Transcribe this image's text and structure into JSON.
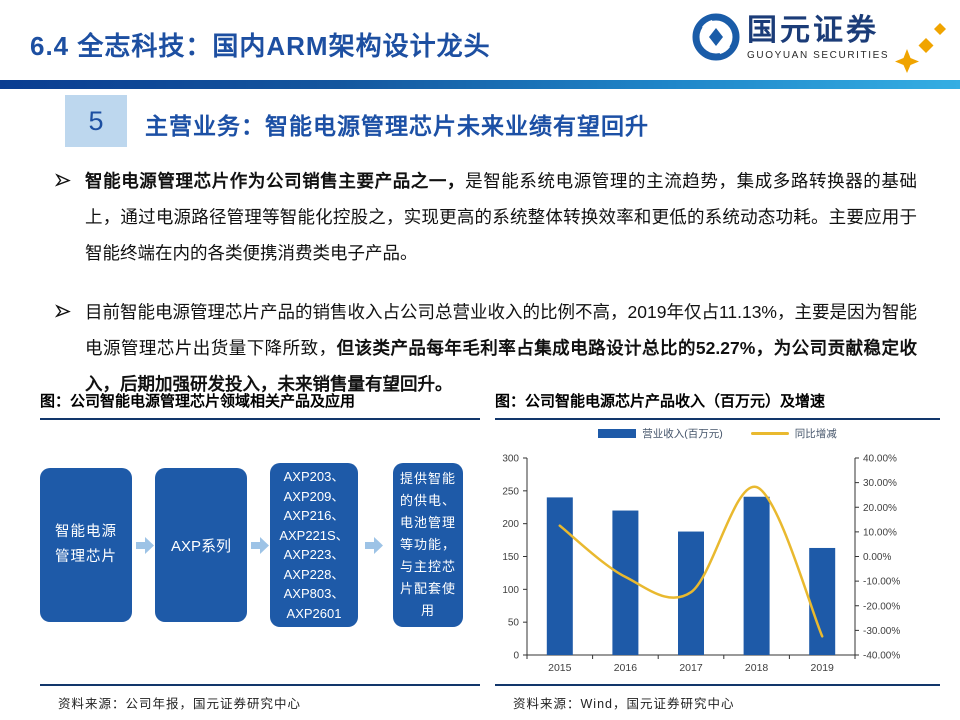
{
  "header": {
    "title": "6.4 全志科技：国内ARM架构设计龙头",
    "logo_cn": "国元证券",
    "logo_en": "GUOYUAN SECURITIES"
  },
  "section": {
    "number": "5",
    "title": "主营业务：智能电源管理芯片未来业绩有望回升"
  },
  "bullets": [
    {
      "bold_lead": "智能电源管理芯片作为公司销售主要产品之一，",
      "text": "是智能系统电源管理的主流趋势，集成多路转换器的基础上，通过电源路径管理等智能化控股之，实现更高的系统整体转换效率和更低的系统动态功耗。主要应用于智能终端在内的各类便携消费类电子产品。",
      "bold_tail": ""
    },
    {
      "bold_lead": "",
      "text": "目前智能电源管理芯片产品的销售收入占公司总营业收入的比例不高，2019年仅占11.13%，主要是因为智能电源管理芯片出货量下降所致，",
      "bold_tail": "但该类产品每年毛利率占集成电路设计总比的52.27%，为公司贡献稳定收入，后期加强研发投入，未来销售量有望回升。"
    }
  ],
  "figure_left": {
    "title": "图：公司智能电源管理芯片领域相关产品及应用",
    "box1": "智能电源\n管理芯片",
    "box2": "AXP系列",
    "box3": "AXP203、\nAXP209、\nAXP216、\nAXP221S、\nAXP223、\nAXP228、\nAXP803、\nAXP2601",
    "box4": "提供智能\n的供电、\n电池管理\n等功能，\n与主控芯\n片配套使\n用",
    "source": "资料来源：公司年报，国元证券研究中心"
  },
  "figure_right": {
    "title": "图：公司智能电源芯片产品收入（百万元）及增速",
    "source": "资料来源：Wind，国元证券研究中心"
  },
  "chart_data": {
    "type": "bar",
    "subtype": "bar-line-combo",
    "title": "公司智能电源芯片产品收入（百万元）及增速",
    "categories": [
      "2015",
      "2016",
      "2017",
      "2018",
      "2019"
    ],
    "series": [
      {
        "name": "营业收入(百万元)",
        "type": "bar",
        "axis": "left",
        "color": "#1e5aa8",
        "values": [
          240,
          220,
          188,
          241,
          163
        ]
      },
      {
        "name": "同比增减",
        "type": "line",
        "axis": "right",
        "color": "#e9b92f",
        "values": [
          12.5,
          -8.3,
          -14.5,
          28.2,
          -32.4
        ]
      }
    ],
    "left_axis": {
      "min": 0,
      "max": 300,
      "step": 50,
      "tick_labels": [
        "300",
        "250",
        "200",
        "150",
        "100",
        "50",
        "0"
      ]
    },
    "right_axis": {
      "min": -40,
      "max": 40,
      "step": 10,
      "tick_labels": [
        "40.00%",
        "30.00%",
        "20.00%",
        "10.00%",
        "0.00%",
        "-10.00%",
        "-20.00%",
        "-30.00%",
        "-40.00%"
      ]
    },
    "legend_position": "top",
    "grid": false
  },
  "colors": {
    "accent_blue": "#1d4fa1",
    "navy": "#12366b",
    "bar_blue": "#1e5aa8",
    "light_blue_box": "#bdd7ee",
    "arrow_blue": "#9dc3e6",
    "line_gold": "#e9b92f",
    "divider_from": "#0a3d91",
    "divider_to": "#35aee3"
  }
}
